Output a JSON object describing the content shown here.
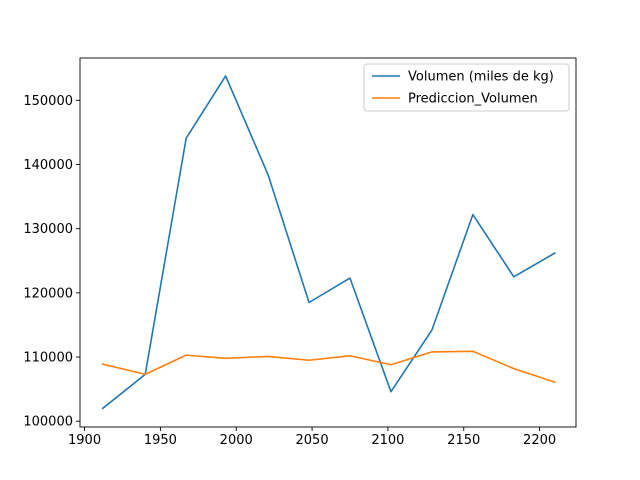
{
  "chart_data": {
    "type": "line",
    "title": "",
    "xlabel": "",
    "ylabel": "",
    "xlim": [
      1897,
      2224
    ],
    "ylim": [
      99100,
      156600
    ],
    "x_ticks": [
      1900,
      1950,
      2000,
      2050,
      2100,
      2150,
      2200
    ],
    "y_ticks": [
      100000,
      110000,
      120000,
      130000,
      140000,
      150000
    ],
    "x_tick_labels": [
      "1900",
      "1950",
      "2000",
      "2050",
      "2100",
      "2150",
      "2200"
    ],
    "y_tick_labels": [
      "100000",
      "110000",
      "120000",
      "130000",
      "140000",
      "150000"
    ],
    "grid": false,
    "legend_position": "top-right",
    "x": [
      1912,
      1940,
      1967,
      1993,
      2021,
      2048,
      2075,
      2102,
      2129,
      2156,
      2183,
      2210
    ],
    "series": [
      {
        "name": "Volumen (miles de kg)",
        "color": "#1f77b4",
        "values": [
          102000,
          107300,
          144100,
          153800,
          138400,
          118500,
          122300,
          104600,
          114200,
          132200,
          122500,
          126200
        ]
      },
      {
        "name": "Prediccion_Volumen",
        "color": "#ff7f0e",
        "values": [
          108900,
          107300,
          110300,
          109800,
          110100,
          109500,
          110200,
          108800,
          110800,
          110900,
          108200,
          106100
        ]
      }
    ]
  }
}
